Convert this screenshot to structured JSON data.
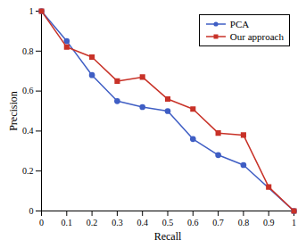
{
  "chart_data": {
    "type": "line",
    "xlabel": "Recall",
    "ylabel": "Precision",
    "series": [
      {
        "name": "PCA",
        "color": "#3f5ec4",
        "marker": "circle",
        "x": [
          0,
          0.1,
          0.2,
          0.3,
          0.4,
          0.5,
          0.6,
          0.7,
          0.8,
          1.0
        ],
        "values": [
          1.0,
          0.85,
          0.68,
          0.55,
          0.52,
          0.5,
          0.36,
          0.28,
          0.23,
          0.0
        ]
      },
      {
        "name": "Our approach",
        "color": "#c83228",
        "marker": "square",
        "x": [
          0,
          0.1,
          0.2,
          0.3,
          0.4,
          0.5,
          0.6,
          0.7,
          0.8,
          0.9,
          1.0
        ],
        "values": [
          1.0,
          0.82,
          0.77,
          0.65,
          0.67,
          0.56,
          0.51,
          0.39,
          0.38,
          0.12,
          0.0
        ]
      }
    ],
    "xlim": [
      0,
      1
    ],
    "ylim": [
      0,
      1
    ],
    "xticks": [
      0,
      0.1,
      0.2,
      0.3,
      0.4,
      0.5,
      0.6,
      0.7,
      0.8,
      0.9,
      1
    ],
    "yticks": [
      0,
      0.2,
      0.4,
      0.6,
      0.8,
      1
    ],
    "grid": false,
    "legend": "upper right"
  }
}
